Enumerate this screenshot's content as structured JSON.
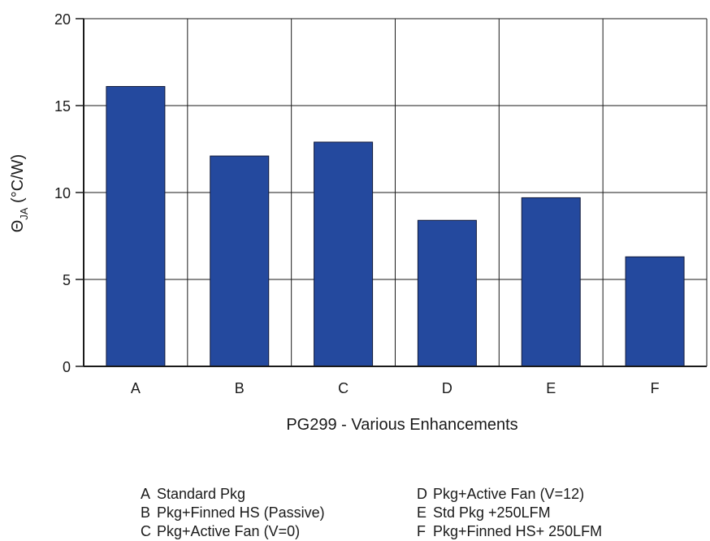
{
  "chart_data": {
    "type": "bar",
    "categories": [
      "A",
      "B",
      "C",
      "D",
      "E",
      "F"
    ],
    "values": [
      16.1,
      12.1,
      12.9,
      8.4,
      9.7,
      6.3
    ],
    "ylabel_symbol": "Θ",
    "ylabel_subscript": "JA",
    "ylabel_unit": " (°C/W)",
    "xlabel": "PG299 - Various Enhancements",
    "ylim": [
      0,
      20
    ],
    "yticks": [
      "0",
      "5",
      "10",
      "15",
      "20"
    ],
    "grid": true,
    "bar_color": "#24499e"
  },
  "legend": {
    "left": [
      {
        "key": "A",
        "label": "Standard Pkg"
      },
      {
        "key": "B",
        "label": "Pkg+Finned HS (Passive)"
      },
      {
        "key": "C",
        "label": "Pkg+Active Fan (V=0)"
      }
    ],
    "right": [
      {
        "key": "D",
        "label": "Pkg+Active Fan (V=12)"
      },
      {
        "key": "E",
        "label": "Std Pkg +250LFM"
      },
      {
        "key": "F",
        "label": "Pkg+Finned HS+ 250LFM"
      }
    ]
  }
}
